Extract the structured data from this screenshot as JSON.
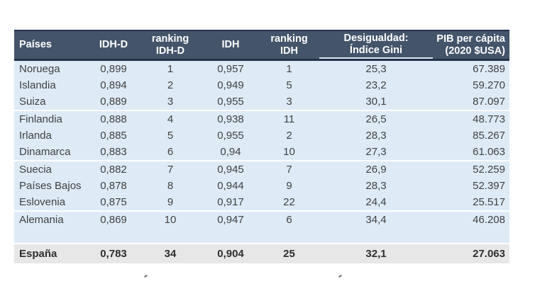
{
  "table": {
    "columns": [
      {
        "id": "pais",
        "label": "Países"
      },
      {
        "id": "idhd",
        "label": "IDH-D"
      },
      {
        "id": "rank_idhd",
        "label": "ranking\nIDH-D"
      },
      {
        "id": "idh",
        "label": "IDH"
      },
      {
        "id": "rank_idh",
        "label": "ranking\nIDH"
      },
      {
        "id": "gini",
        "label": "Desigualdad:\nÍndice Gini"
      },
      {
        "id": "pib",
        "label": "PIB per cápita\n(2020 $USA)"
      }
    ],
    "rows": [
      {
        "pais": "Noruega",
        "idhd": "0,899",
        "rank_idhd": "1",
        "idh": "0,957",
        "rank_idh": "1",
        "gini": "25,3",
        "pib": "67.389",
        "group_end": false
      },
      {
        "pais": "Islandia",
        "idhd": "0,894",
        "rank_idhd": "2",
        "idh": "0,949",
        "rank_idh": "5",
        "gini": "23,2",
        "pib": "59.270",
        "group_end": false
      },
      {
        "pais": "Suiza",
        "idhd": "0,889",
        "rank_idhd": "3",
        "idh": "0,955",
        "rank_idh": "3",
        "gini": "30,1",
        "pib": "87.097",
        "group_end": true
      },
      {
        "pais": "Finlandia",
        "idhd": "0,888",
        "rank_idhd": "4",
        "idh": "0,938",
        "rank_idh": "11",
        "gini": "26,5",
        "pib": "48.773",
        "group_end": false
      },
      {
        "pais": "Irlanda",
        "idhd": "0,885",
        "rank_idhd": "5",
        "idh": "0,955",
        "rank_idh": "2",
        "gini": "28,3",
        "pib": "85.267",
        "group_end": false
      },
      {
        "pais": "Dinamarca",
        "idhd": "0,883",
        "rank_idhd": "6",
        "idh": "0,94",
        "rank_idh": "10",
        "gini": "27,3",
        "pib": "61.063",
        "group_end": true
      },
      {
        "pais": "Suecia",
        "idhd": "0,882",
        "rank_idhd": "7",
        "idh": "0,945",
        "rank_idh": "7",
        "gini": "26,9",
        "pib": "52.259",
        "group_end": false
      },
      {
        "pais": "Países Bajos",
        "idhd": "0,878",
        "rank_idhd": "8",
        "idh": "0,944",
        "rank_idh": "9",
        "gini": "28,3",
        "pib": "52.397",
        "group_end": false
      },
      {
        "pais": "Eslovenia",
        "idhd": "0,875",
        "rank_idhd": "9",
        "idh": "0,917",
        "rank_idh": "22",
        "gini": "24,4",
        "pib": "25.517",
        "group_end": true
      },
      {
        "pais": "Alemania",
        "idhd": "0,869",
        "rank_idhd": "10",
        "idh": "0,947",
        "rank_idh": "6",
        "gini": "34,4",
        "pib": "46.208",
        "group_end": false
      }
    ],
    "total_row": {
      "pais": "España",
      "idhd": "0,783",
      "rank_idhd": "34",
      "idh": "0,904",
      "rank_idh": "25",
      "gini": "32,1",
      "pib": "27.063"
    }
  },
  "colors": {
    "header_bg": "#44546A",
    "header_text": "#FFFFFF",
    "header_border": "#24324A",
    "gini_header_underline": "#D9E6F3",
    "row_bg": "#DEEBF7",
    "row_separator": "#FFFFFF",
    "total_row_bg": "#E8E7E7",
    "body_text": "#404040"
  }
}
